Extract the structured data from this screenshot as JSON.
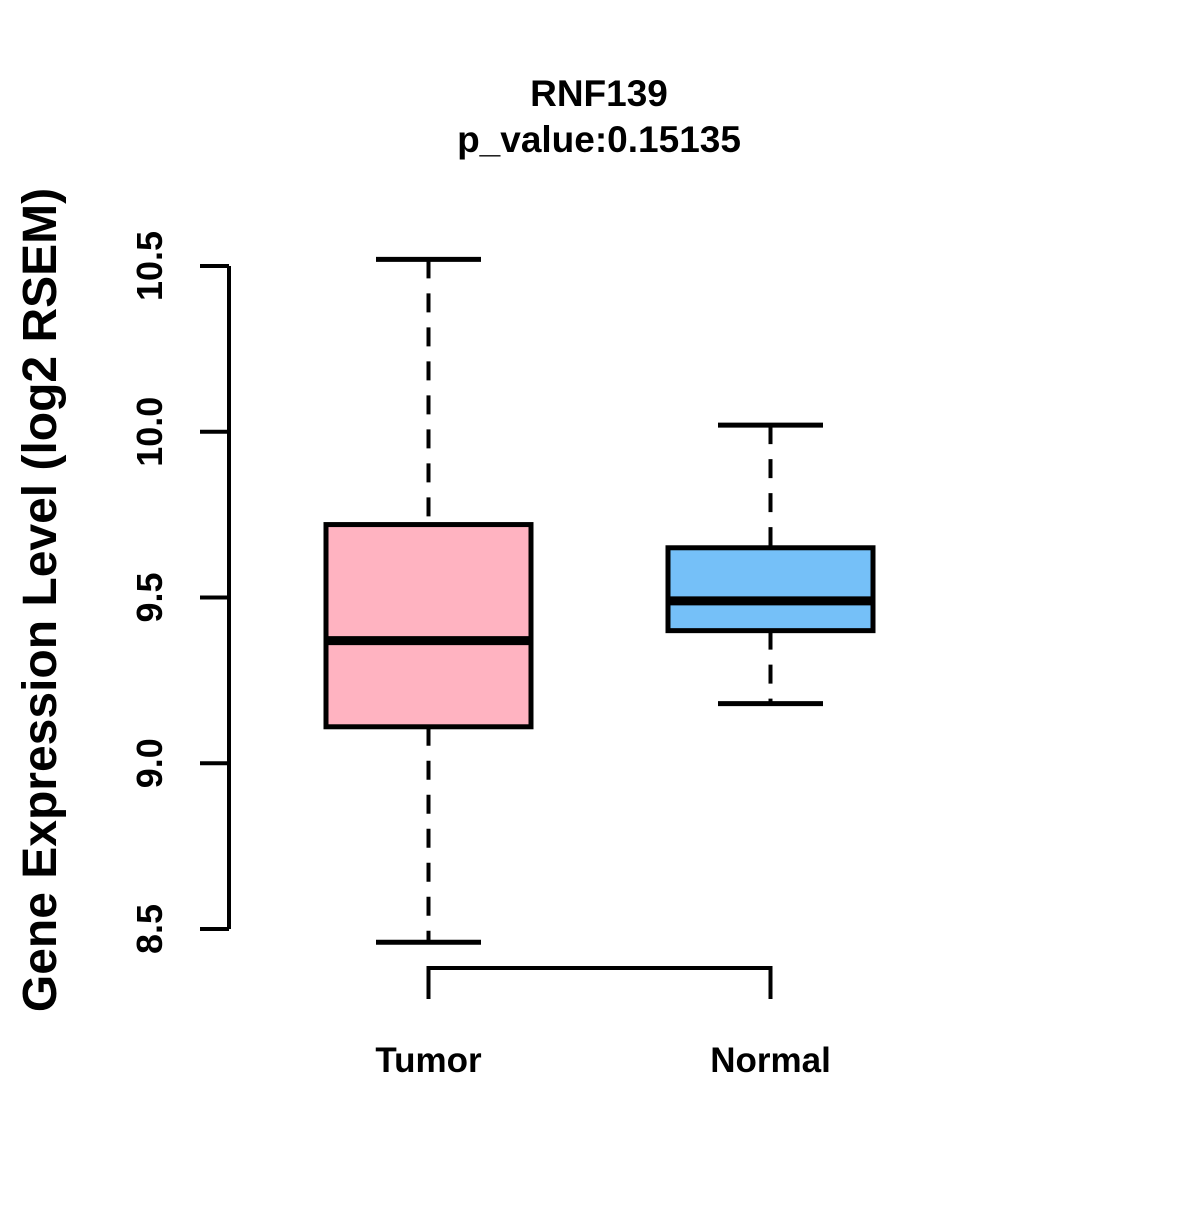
{
  "page": {
    "background": "#FFFFFF",
    "text_color": "#000000"
  },
  "chart_data": {
    "type": "boxplot",
    "title": "RNF139",
    "subtitle": "p_value:0.15135",
    "ylabel": "Gene Expression Level (log2 RSEM)",
    "xlabel": "",
    "grid": false,
    "legend": "none",
    "axis_range": [
      8.5,
      10.5
    ],
    "yticks": [
      {
        "value": 8.5,
        "label": "8.5"
      },
      {
        "value": 9.0,
        "label": "9.0"
      },
      {
        "value": 9.5,
        "label": "9.5"
      },
      {
        "value": 10.0,
        "label": "10.0"
      },
      {
        "value": 10.5,
        "label": "10.5"
      }
    ],
    "series": [
      {
        "name": "Tumor",
        "color": "#FFB3C1",
        "whisker_low": 8.46,
        "q1": 9.11,
        "median": 9.37,
        "q3": 9.72,
        "whisker_high": 10.52
      },
      {
        "name": "Normal",
        "color": "#75C0F8",
        "whisker_low": 9.18,
        "q1": 9.4,
        "median": 9.49,
        "q3": 9.65,
        "whisker_high": 10.02
      }
    ],
    "line_color": "#000000"
  }
}
